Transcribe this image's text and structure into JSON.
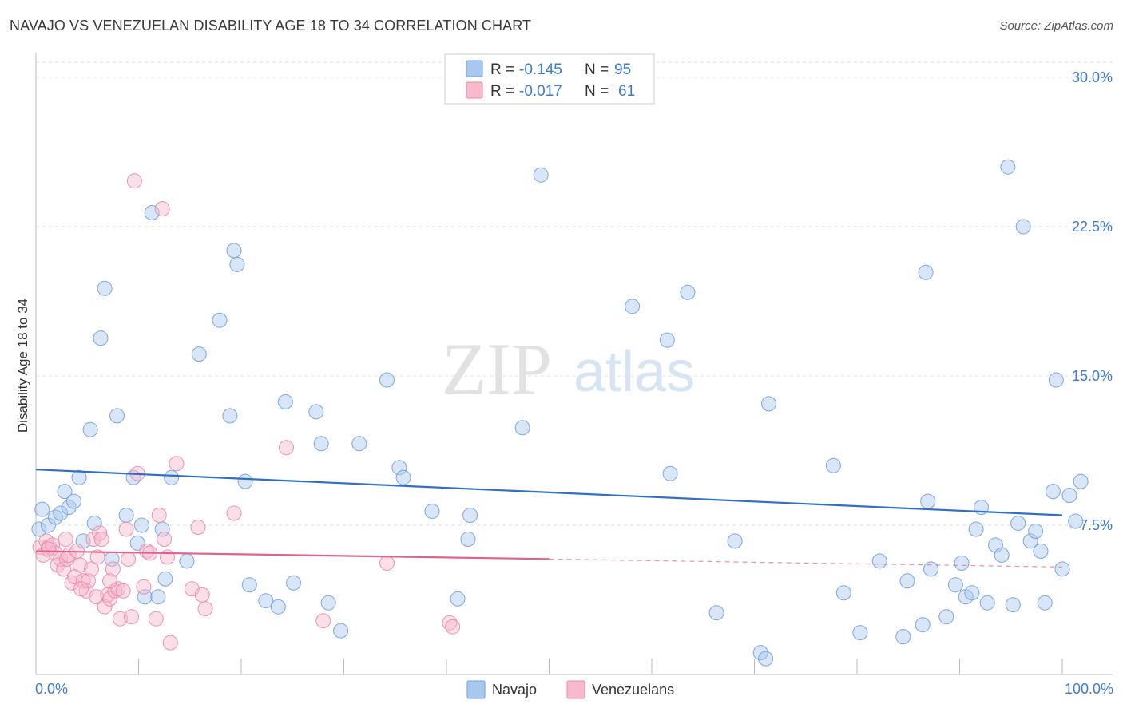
{
  "title": "NAVAJO VS VENEZUELAN DISABILITY AGE 18 TO 34 CORRELATION CHART",
  "source": "Source: ZipAtlas.com",
  "watermark": {
    "zip": "ZIP",
    "atlas": "atlas"
  },
  "legend": [
    {
      "r_label": "R =",
      "r_value": "-0.145",
      "n_label": "N =",
      "n_value": "95",
      "color": "#a9c8f0",
      "stroke": "#6f9fdd"
    },
    {
      "r_label": "R =",
      "r_value": "-0.017",
      "n_label": "N =",
      "n_value": "61",
      "color": "#f7b9cc",
      "stroke": "#e888a6"
    }
  ],
  "chart_data": {
    "type": "scatter",
    "title": "NAVAJO VS VENEZUELAN DISABILITY AGE 18 TO 34 CORRELATION CHART",
    "xlabel": "",
    "ylabel": "Disability Age 18 to 34",
    "xlim": [
      0,
      100
    ],
    "ylim": [
      0,
      30
    ],
    "x_tick_labels": [
      "0.0%",
      "100.0%"
    ],
    "y_ticks": [
      7.5,
      15.0,
      22.5,
      30.0
    ],
    "y_tick_labels": [
      "7.5%",
      "15.0%",
      "22.5%",
      "30.0%"
    ],
    "series": [
      {
        "name": "Navajo",
        "color": "#a9c8f0",
        "stroke": "#6f9fdd",
        "line_color": "#2f6fc8",
        "trend": {
          "x0": 0,
          "y0": 10.3,
          "x1": 100,
          "y1": 8.0
        },
        "points": [
          [
            0.3,
            7.3
          ],
          [
            0.6,
            8.3
          ],
          [
            1.2,
            7.5
          ],
          [
            1.9,
            7.9
          ],
          [
            2.4,
            8.1
          ],
          [
            2.8,
            9.2
          ],
          [
            3.2,
            8.4
          ],
          [
            3.7,
            8.7
          ],
          [
            4.2,
            9.9
          ],
          [
            4.6,
            6.7
          ],
          [
            5.3,
            12.3
          ],
          [
            5.7,
            7.6
          ],
          [
            6.3,
            16.9
          ],
          [
            6.7,
            19.4
          ],
          [
            7.4,
            5.8
          ],
          [
            7.9,
            13.0
          ],
          [
            8.8,
            8.0
          ],
          [
            9.5,
            9.9
          ],
          [
            9.9,
            6.6
          ],
          [
            10.3,
            7.5
          ],
          [
            10.6,
            3.9
          ],
          [
            11.3,
            23.2
          ],
          [
            11.9,
            3.9
          ],
          [
            12.3,
            7.3
          ],
          [
            12.6,
            4.8
          ],
          [
            13.2,
            9.9
          ],
          [
            14.7,
            5.7
          ],
          [
            15.9,
            16.1
          ],
          [
            17.9,
            17.8
          ],
          [
            18.9,
            13.0
          ],
          [
            19.3,
            21.3
          ],
          [
            19.6,
            20.6
          ],
          [
            20.4,
            9.7
          ],
          [
            20.8,
            4.5
          ],
          [
            22.4,
            3.7
          ],
          [
            23.6,
            3.4
          ],
          [
            24.3,
            13.7
          ],
          [
            25.1,
            4.6
          ],
          [
            27.3,
            13.2
          ],
          [
            27.8,
            11.6
          ],
          [
            28.5,
            3.6
          ],
          [
            29.7,
            2.2
          ],
          [
            31.5,
            11.6
          ],
          [
            34.2,
            14.8
          ],
          [
            35.4,
            10.4
          ],
          [
            35.8,
            9.9
          ],
          [
            38.6,
            8.2
          ],
          [
            41.1,
            3.8
          ],
          [
            42.3,
            8.0
          ],
          [
            42.1,
            6.8
          ],
          [
            47.4,
            12.4
          ],
          [
            49.2,
            25.1
          ],
          [
            58.1,
            18.5
          ],
          [
            61.5,
            16.8
          ],
          [
            61.8,
            10.1
          ],
          [
            63.5,
            19.2
          ],
          [
            66.3,
            3.1
          ],
          [
            68.1,
            6.7
          ],
          [
            70.6,
            1.1
          ],
          [
            71.1,
            0.8
          ],
          [
            71.4,
            13.6
          ],
          [
            77.7,
            10.5
          ],
          [
            78.7,
            4.1
          ],
          [
            80.3,
            2.1
          ],
          [
            82.2,
            5.7
          ],
          [
            84.5,
            1.9
          ],
          [
            84.9,
            4.7
          ],
          [
            86.4,
            2.5
          ],
          [
            86.9,
            8.7
          ],
          [
            86.7,
            20.2
          ],
          [
            87.2,
            5.3
          ],
          [
            88.7,
            2.9
          ],
          [
            89.6,
            4.5
          ],
          [
            90.2,
            5.6
          ],
          [
            90.6,
            3.9
          ],
          [
            91.2,
            4.1
          ],
          [
            91.6,
            7.3
          ],
          [
            92.1,
            8.4
          ],
          [
            92.7,
            3.6
          ],
          [
            93.5,
            6.5
          ],
          [
            94.1,
            6.0
          ],
          [
            94.7,
            25.5
          ],
          [
            95.2,
            3.5
          ],
          [
            95.7,
            7.6
          ],
          [
            96.2,
            22.5
          ],
          [
            96.9,
            6.7
          ],
          [
            97.4,
            7.2
          ],
          [
            97.9,
            6.2
          ],
          [
            98.3,
            3.6
          ],
          [
            99.1,
            9.2
          ],
          [
            99.4,
            14.8
          ],
          [
            100.0,
            5.3
          ],
          [
            100.7,
            9.0
          ],
          [
            101.3,
            7.7
          ],
          [
            101.8,
            9.7
          ]
        ]
      },
      {
        "name": "Venezuelans",
        "color": "#f7b9cc",
        "stroke": "#e888a6",
        "line_color": "#e0628c",
        "trend": {
          "x0": 0,
          "y0": 6.2,
          "x1": 50,
          "y1": 5.8
        },
        "trend_dashed": {
          "x0": 50,
          "y0": 5.8,
          "x1": 100,
          "y1": 5.4
        },
        "points": [
          [
            0.4,
            6.4
          ],
          [
            0.7,
            6.0
          ],
          [
            1.0,
            6.7
          ],
          [
            1.3,
            6.4
          ],
          [
            1.6,
            6.5
          ],
          [
            1.9,
            6.1
          ],
          [
            2.1,
            5.5
          ],
          [
            2.4,
            5.8
          ],
          [
            2.7,
            5.3
          ],
          [
            3.0,
            5.8
          ],
          [
            3.2,
            6.0
          ],
          [
            3.5,
            4.6
          ],
          [
            3.8,
            4.9
          ],
          [
            4.0,
            6.2
          ],
          [
            4.3,
            5.5
          ],
          [
            4.6,
            4.7
          ],
          [
            4.9,
            4.2
          ],
          [
            5.1,
            4.7
          ],
          [
            5.4,
            5.3
          ],
          [
            5.6,
            6.8
          ],
          [
            5.9,
            3.9
          ],
          [
            6.2,
            7.1
          ],
          [
            6.4,
            6.8
          ],
          [
            6.7,
            3.4
          ],
          [
            7.0,
            4.0
          ],
          [
            7.2,
            3.8
          ],
          [
            7.5,
            5.3
          ],
          [
            7.7,
            4.2
          ],
          [
            8.0,
            4.3
          ],
          [
            8.2,
            2.8
          ],
          [
            8.5,
            4.2
          ],
          [
            8.8,
            7.3
          ],
          [
            9.0,
            5.8
          ],
          [
            9.3,
            2.9
          ],
          [
            9.6,
            24.8
          ],
          [
            9.9,
            10.1
          ],
          [
            10.5,
            4.4
          ],
          [
            10.8,
            6.2
          ],
          [
            11.1,
            6.1
          ],
          [
            11.7,
            2.8
          ],
          [
            12.0,
            8.0
          ],
          [
            12.3,
            23.4
          ],
          [
            12.5,
            6.8
          ],
          [
            12.8,
            5.9
          ],
          [
            13.1,
            1.6
          ],
          [
            13.7,
            10.6
          ],
          [
            15.2,
            4.3
          ],
          [
            15.8,
            7.4
          ],
          [
            16.2,
            4.0
          ],
          [
            16.5,
            3.3
          ],
          [
            19.3,
            8.1
          ],
          [
            24.4,
            11.4
          ],
          [
            28.0,
            2.7
          ],
          [
            34.2,
            5.6
          ],
          [
            40.3,
            2.6
          ],
          [
            40.6,
            2.4
          ],
          [
            1.2,
            6.3
          ],
          [
            2.9,
            6.8
          ],
          [
            4.4,
            4.3
          ],
          [
            6.0,
            5.9
          ],
          [
            7.2,
            4.7
          ]
        ]
      }
    ]
  },
  "bottom_legend": [
    {
      "label": "Navajo",
      "color": "#a9c8f0",
      "stroke": "#6f9fdd"
    },
    {
      "label": "Venezuelans",
      "color": "#f7b9cc",
      "stroke": "#e888a6"
    }
  ]
}
